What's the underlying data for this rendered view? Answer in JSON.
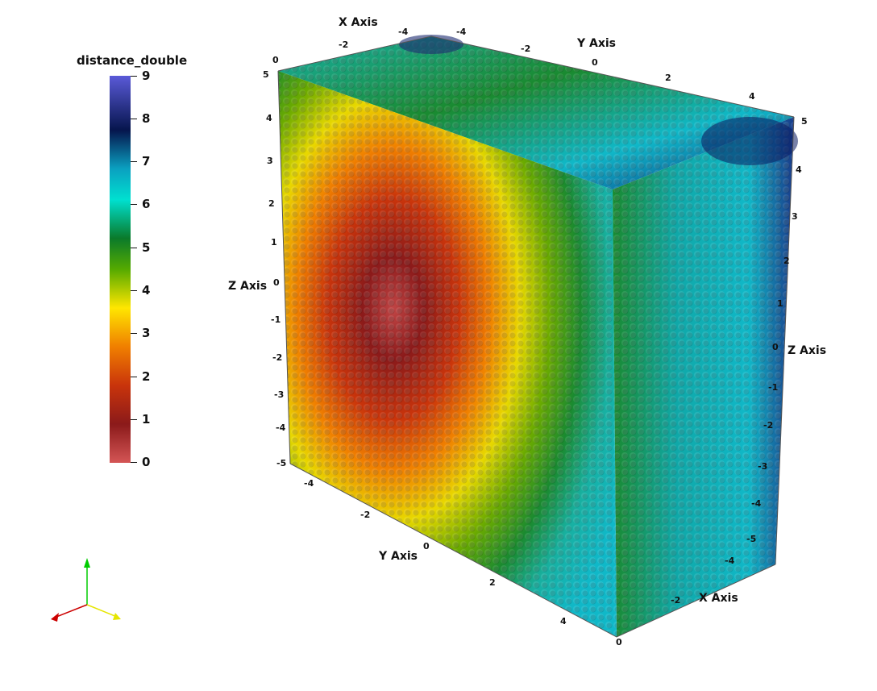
{
  "colorbar": {
    "title": "distance_double",
    "labels": [
      "9",
      "8",
      "7",
      "6",
      "5",
      "4",
      "3",
      "2",
      "1",
      "0"
    ]
  },
  "axes": {
    "x_axis_top": "X Axis",
    "y_axis_top": "Y Axis",
    "z_axis_left": "Z Axis",
    "z_axis_right": "Z Axis",
    "y_axis_bottom": "Y Axis",
    "x_axis_bottom": "X Axis"
  },
  "ticks": {
    "top_x": [
      "-2",
      "-4",
      "-4",
      "0"
    ],
    "top_y": [
      "-2",
      "0",
      "2",
      "4",
      "5"
    ],
    "left_z": [
      "5",
      "4",
      "3",
      "2",
      "1",
      "0",
      "-1",
      "-2",
      "-3",
      "-4",
      "-5"
    ],
    "right_z": [
      "4",
      "3",
      "2",
      "1",
      "0",
      "-1",
      "-2",
      "-3",
      "-4",
      "-5"
    ],
    "bottom_y": [
      "-4",
      "-2",
      "0",
      "2",
      "4",
      "0"
    ],
    "bottom_x": [
      "-4",
      "-2"
    ]
  },
  "colors": {
    "low": "#d45555",
    "high": "#5a5ad8",
    "mid": "#55aa00"
  },
  "icons": [
    "orientation-axes-icon"
  ]
}
